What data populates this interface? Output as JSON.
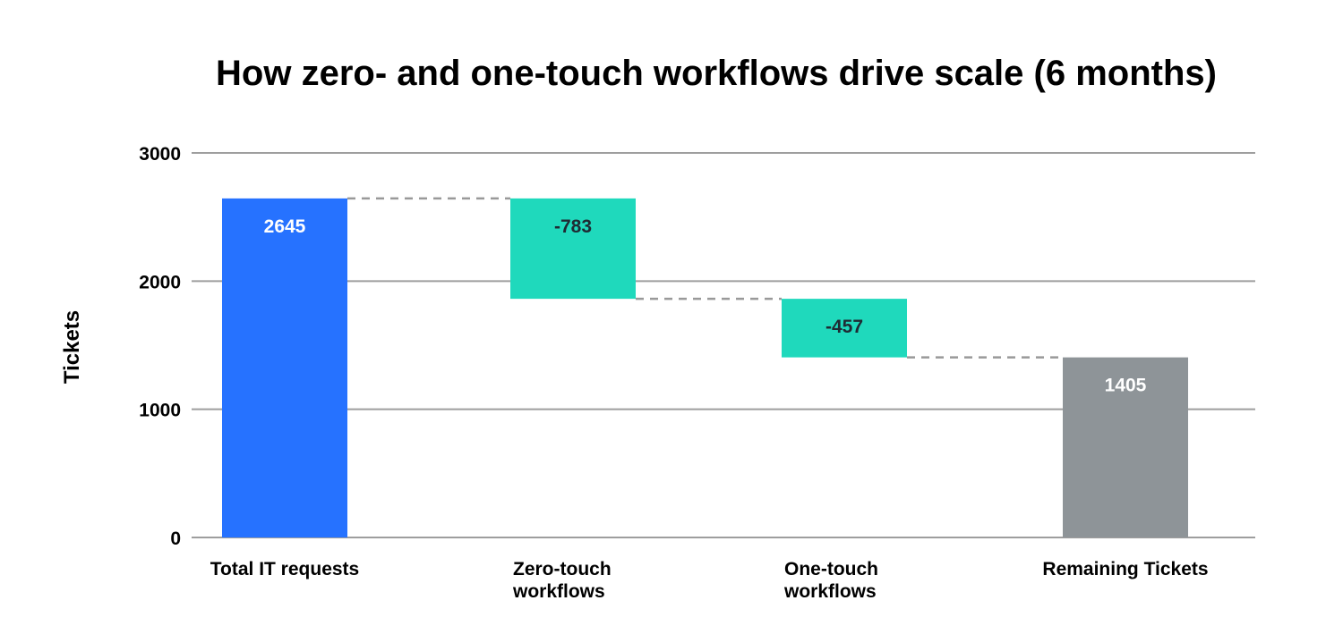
{
  "chart_data": {
    "type": "waterfall",
    "title": "How zero- and one-touch workflows drive scale (6 months)",
    "ylabel": "Tickets",
    "xlabel": "",
    "ylim": [
      0,
      3000
    ],
    "yticks": [
      "0",
      "1000",
      "2000",
      "3000"
    ],
    "grid": true,
    "categories": [
      [
        "Total IT requests"
      ],
      [
        "Zero-touch",
        "workflows"
      ],
      [
        "One-touch",
        "workflows"
      ],
      [
        "Remaining Tickets"
      ]
    ],
    "steps": [
      {
        "kind": "total",
        "value": 2645,
        "label": "2645",
        "color": "#2672FF",
        "label_color": "#FFFFFF"
      },
      {
        "kind": "delta",
        "value": -783,
        "label": "-783",
        "color": "#1FD9BC",
        "label_color": "#1F2A33"
      },
      {
        "kind": "delta",
        "value": -457,
        "label": "-457",
        "color": "#1FD9BC",
        "label_color": "#1F2A33"
      },
      {
        "kind": "total",
        "value": 1405,
        "label": "1405",
        "color": "#8E9498",
        "label_color": "#FFFFFF"
      }
    ],
    "connector_color": "#999999",
    "grid_color": "#9E9E9E"
  }
}
